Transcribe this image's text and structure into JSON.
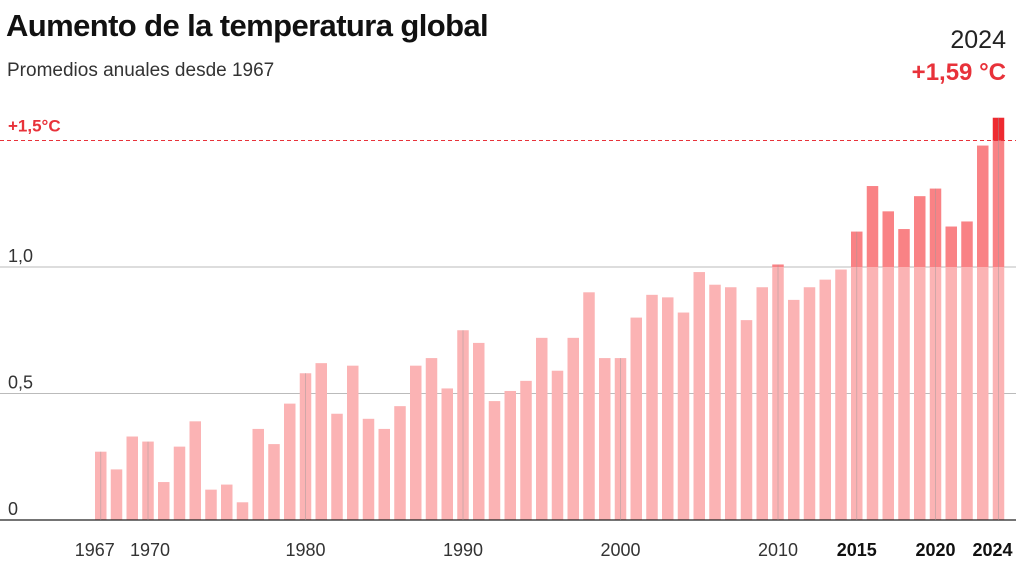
{
  "header": {
    "title": "Aumento de la temperatura global",
    "subtitle": "Promedios anuales desde 1967"
  },
  "callout": {
    "year": "2024",
    "value": "+1,59 °C"
  },
  "colors": {
    "bar": "#fbb3b4",
    "bar_above_threshold": "#f98285",
    "bar_highlight": "#ee2a30",
    "accent": "#e8323a",
    "gridline": "#bbbbbb",
    "axis": "#222222"
  },
  "chart_data": {
    "type": "bar",
    "title": "Aumento de la temperatura global",
    "subtitle": "Promedios anuales desde 1967",
    "xlabel": "",
    "ylabel": "",
    "ylim": [
      0,
      1.6
    ],
    "grid": true,
    "x": [
      1967,
      1968,
      1969,
      1970,
      1971,
      1972,
      1973,
      1974,
      1975,
      1976,
      1977,
      1978,
      1979,
      1980,
      1981,
      1982,
      1983,
      1984,
      1985,
      1986,
      1987,
      1988,
      1989,
      1990,
      1991,
      1992,
      1993,
      1994,
      1995,
      1996,
      1997,
      1998,
      1999,
      2000,
      2001,
      2002,
      2003,
      2004,
      2005,
      2006,
      2007,
      2008,
      2009,
      2010,
      2011,
      2012,
      2013,
      2014,
      2015,
      2016,
      2017,
      2018,
      2019,
      2020,
      2021,
      2022,
      2023,
      2024
    ],
    "values": [
      0.27,
      0.2,
      0.33,
      0.31,
      0.15,
      0.29,
      0.39,
      0.12,
      0.14,
      0.07,
      0.36,
      0.3,
      0.46,
      0.58,
      0.62,
      0.42,
      0.61,
      0.4,
      0.36,
      0.45,
      0.61,
      0.64,
      0.52,
      0.75,
      0.7,
      0.47,
      0.51,
      0.55,
      0.72,
      0.59,
      0.72,
      0.9,
      0.64,
      0.64,
      0.8,
      0.89,
      0.88,
      0.82,
      0.98,
      0.93,
      0.92,
      0.79,
      0.92,
      1.01,
      0.87,
      0.92,
      0.95,
      0.99,
      1.14,
      1.32,
      1.22,
      1.15,
      1.28,
      1.31,
      1.16,
      1.18,
      1.48,
      1.59
    ],
    "y_ticks": [
      {
        "value": 0,
        "label": "0"
      },
      {
        "value": 0.5,
        "label": "0,5"
      },
      {
        "value": 1.0,
        "label": "1,0"
      }
    ],
    "x_ticks": [
      {
        "year": 1967,
        "label": "1967",
        "bold": false
      },
      {
        "year": 1970,
        "label": "1970",
        "bold": false
      },
      {
        "year": 1980,
        "label": "1980",
        "bold": false
      },
      {
        "year": 1990,
        "label": "1990",
        "bold": false
      },
      {
        "year": 2000,
        "label": "2000",
        "bold": false
      },
      {
        "year": 2010,
        "label": "2010",
        "bold": false
      },
      {
        "year": 2015,
        "label": "2015",
        "bold": true
      },
      {
        "year": 2020,
        "label": "2020",
        "bold": true
      },
      {
        "year": 2024,
        "label": "2024",
        "bold": true
      }
    ],
    "threshold": {
      "value": 1.5,
      "label": "+1,5°C"
    },
    "highlight_year": 2024
  }
}
